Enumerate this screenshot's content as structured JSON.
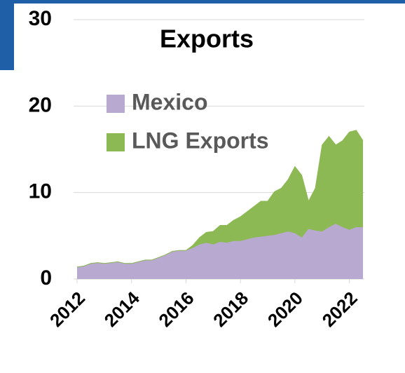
{
  "chart_data": {
    "type": "stacked_area",
    "title": "Exports",
    "x": [
      2012,
      2012.25,
      2012.5,
      2012.75,
      2013,
      2013.25,
      2013.5,
      2013.75,
      2014,
      2014.25,
      2014.5,
      2014.75,
      2015,
      2015.25,
      2015.5,
      2015.75,
      2016,
      2016.25,
      2016.5,
      2016.75,
      2017,
      2017.25,
      2017.5,
      2017.75,
      2018,
      2018.25,
      2018.5,
      2018.75,
      2019,
      2019.25,
      2019.5,
      2019.75,
      2020,
      2020.25,
      2020.5,
      2020.75,
      2021,
      2021.25,
      2021.5,
      2021.75,
      2022,
      2022.25,
      2022.5
    ],
    "series": [
      {
        "name": "Mexico",
        "color": "#b7a9cf",
        "values": [
          1.4,
          1.5,
          1.8,
          1.9,
          1.8,
          1.9,
          2.0,
          1.8,
          1.8,
          2.0,
          2.2,
          2.2,
          2.5,
          2.8,
          3.2,
          3.3,
          3.3,
          3.6,
          4.0,
          4.2,
          4.0,
          4.3,
          4.2,
          4.4,
          4.4,
          4.6,
          4.8,
          4.9,
          5.0,
          5.1,
          5.3,
          5.5,
          5.3,
          4.8,
          5.8,
          5.6,
          5.5,
          6.0,
          6.4,
          6.0,
          5.7,
          6.0,
          6.0
        ]
      },
      {
        "name": "LNG Exports",
        "color": "#8db955",
        "values": [
          0,
          0,
          0,
          0,
          0,
          0,
          0,
          0,
          0,
          0,
          0,
          0,
          0,
          0,
          0,
          0,
          0,
          0.3,
          0.8,
          1.2,
          1.5,
          1.9,
          2.0,
          2.4,
          2.8,
          3.2,
          3.6,
          4.1,
          4.0,
          5.0,
          5.2,
          6.0,
          7.7,
          7.2,
          3.2,
          4.9,
          10.0,
          10.5,
          9.1,
          10.0,
          11.3,
          11.2,
          10.0
        ]
      }
    ],
    "xlim": [
      2012,
      2022.55
    ],
    "xticks": [
      2012,
      2014,
      2016,
      2018,
      2020,
      2022
    ],
    "ylim": [
      0,
      30
    ],
    "yticks": [
      0,
      10,
      20,
      30
    ],
    "grid": true
  }
}
